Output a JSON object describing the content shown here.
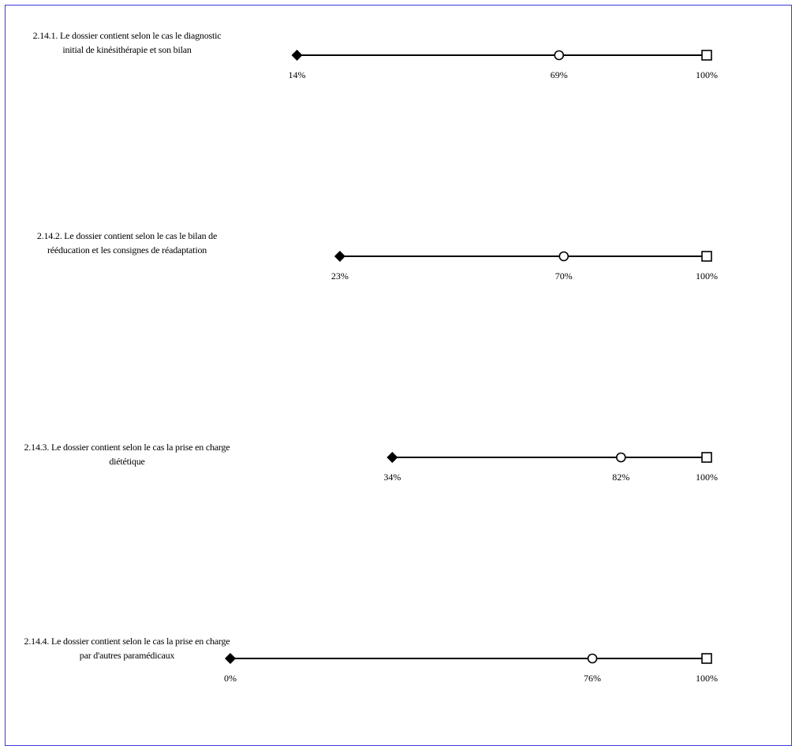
{
  "chart_data": {
    "type": "range",
    "xlim": [
      0,
      100
    ],
    "unit": "%",
    "rows": [
      {
        "label": "2.14.1. Le dossier contient selon le cas le diagnostic initial de kinésithérapie et son bilan",
        "min": 14,
        "mid": 69,
        "max": 100,
        "min_label": "14%",
        "mid_label": "69%",
        "max_label": "100%"
      },
      {
        "label": "2.14.2. Le dossier contient selon le cas le bilan de rééducation et les consignes de réadaptation",
        "min": 23,
        "mid": 70,
        "max": 100,
        "min_label": "23%",
        "mid_label": "70%",
        "max_label": "100%"
      },
      {
        "label": "2.14.3. Le dossier contient selon le cas la prise en charge diététique",
        "min": 34,
        "mid": 82,
        "max": 100,
        "min_label": "34%",
        "mid_label": "82%",
        "max_label": "100%"
      },
      {
        "label": "2.14.4. Le dossier contient selon le cas la prise en charge par d'autres paramédicaux",
        "min": 0,
        "mid": 76,
        "max": 100,
        "min_label": "0%",
        "mid_label": "76%",
        "max_label": "100%"
      }
    ],
    "colors": {
      "marker": "#000000",
      "frame": "#3a3adc"
    }
  }
}
